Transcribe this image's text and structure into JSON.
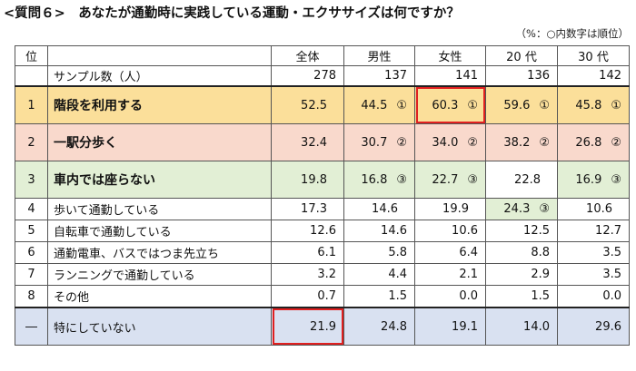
{
  "title": "<質問６>　あなたが通勤時に実践している運動・エクササイズは何ですか？",
  "note": "（%：○内数字は順位）",
  "table": {
    "header": [
      "位",
      "",
      "全体",
      "男性",
      "女性",
      "20 代",
      "30 代"
    ],
    "sample": {
      "label": "サンプル数（人）",
      "values": [
        "278",
        "137",
        "141",
        "136",
        "142"
      ]
    },
    "rows": [
      {
        "rank": "1",
        "label": "階段を利用する",
        "cells": [
          {
            "v": "52.5",
            "m": ""
          },
          {
            "v": "44.5",
            "m": "①"
          },
          {
            "v": "60.3",
            "m": "①"
          },
          {
            "v": "59.6",
            "m": "①"
          },
          {
            "v": "45.8",
            "m": "①"
          }
        ]
      },
      {
        "rank": "2",
        "label": "一駅分歩く",
        "cells": [
          {
            "v": "32.4",
            "m": ""
          },
          {
            "v": "30.7",
            "m": "②"
          },
          {
            "v": "34.0",
            "m": "②"
          },
          {
            "v": "38.2",
            "m": "②"
          },
          {
            "v": "26.8",
            "m": "②"
          }
        ]
      },
      {
        "rank": "3",
        "label": "車内では座らない",
        "cells": [
          {
            "v": "19.8",
            "m": ""
          },
          {
            "v": "16.8",
            "m": "③"
          },
          {
            "v": "22.7",
            "m": "③"
          },
          {
            "v": "22.8",
            "m": ""
          },
          {
            "v": "16.9",
            "m": "③"
          }
        ]
      },
      {
        "rank": "4",
        "label": "歩いて通勤している",
        "cells": [
          {
            "v": "17.3",
            "m": ""
          },
          {
            "v": "14.6",
            "m": ""
          },
          {
            "v": "19.9",
            "m": ""
          },
          {
            "v": "24.3",
            "m": "③"
          },
          {
            "v": "10.6",
            "m": ""
          }
        ]
      },
      {
        "rank": "5",
        "label": "自転車で通勤している",
        "cells": [
          {
            "v": "12.6",
            "m": ""
          },
          {
            "v": "14.6",
            "m": ""
          },
          {
            "v": "10.6",
            "m": ""
          },
          {
            "v": "12.5",
            "m": ""
          },
          {
            "v": "12.7",
            "m": ""
          }
        ]
      },
      {
        "rank": "6",
        "label": "通勤電車、バスではつま先立ち",
        "cells": [
          {
            "v": "6.1",
            "m": ""
          },
          {
            "v": "5.8",
            "m": ""
          },
          {
            "v": "6.4",
            "m": ""
          },
          {
            "v": "8.8",
            "m": ""
          },
          {
            "v": "3.5",
            "m": ""
          }
        ]
      },
      {
        "rank": "7",
        "label": "ランニングで通勤している",
        "cells": [
          {
            "v": "3.2",
            "m": ""
          },
          {
            "v": "4.4",
            "m": ""
          },
          {
            "v": "2.1",
            "m": ""
          },
          {
            "v": "2.9",
            "m": ""
          },
          {
            "v": "3.5",
            "m": ""
          }
        ]
      },
      {
        "rank": "8",
        "label": "その他",
        "cells": [
          {
            "v": "0.7",
            "m": ""
          },
          {
            "v": "1.5",
            "m": ""
          },
          {
            "v": "0.0",
            "m": ""
          },
          {
            "v": "1.5",
            "m": ""
          },
          {
            "v": "0.0",
            "m": ""
          }
        ]
      }
    ],
    "none": {
      "rank": "―",
      "label": "特にしていない",
      "cells": [
        {
          "v": "21.9",
          "m": ""
        },
        {
          "v": "24.8",
          "m": ""
        },
        {
          "v": "19.1",
          "m": ""
        },
        {
          "v": "14.0",
          "m": ""
        },
        {
          "v": "29.6",
          "m": ""
        }
      ]
    }
  },
  "colors": {
    "rank1": "#fbdf9a",
    "rank2": "#f9d9cc",
    "rank3": "#e2efd5",
    "none": "#d9e1f1",
    "highlight": "#e02020"
  }
}
